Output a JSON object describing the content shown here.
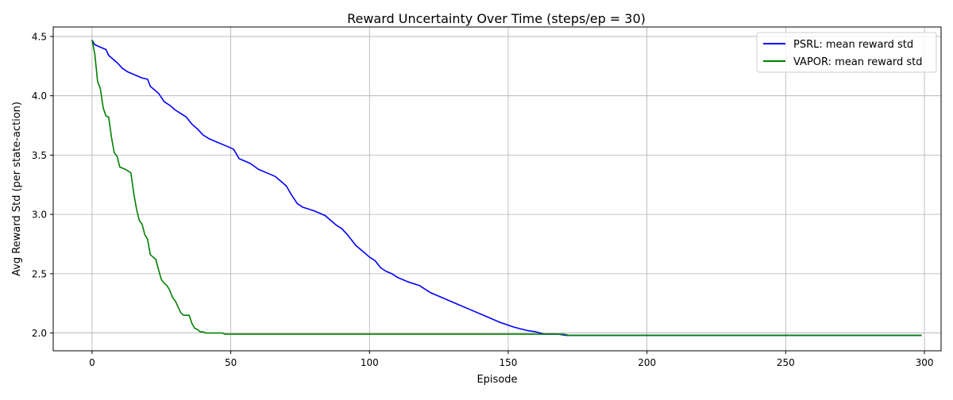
{
  "chart_data": {
    "type": "line",
    "title": "Reward Uncertainty Over Time (steps/ep = 30)",
    "xlabel": "Episode",
    "ylabel": "Avg Reward Std (per state-action)",
    "xlim": [
      -14,
      306
    ],
    "ylim": [
      1.85,
      4.58
    ],
    "xticks": [
      0,
      50,
      100,
      150,
      200,
      250,
      300
    ],
    "yticks": [
      2.0,
      2.5,
      3.0,
      3.5,
      4.0,
      4.5
    ],
    "xtick_labels": [
      "0",
      "50",
      "100",
      "150",
      "200",
      "250",
      "300"
    ],
    "ytick_labels": [
      "2.0",
      "2.5",
      "3.0",
      "3.5",
      "4.0",
      "4.5"
    ],
    "grid": true,
    "legend_position": "top-right",
    "series": [
      {
        "name": "PSRL: mean reward std",
        "color": "#0000ff",
        "x": [
          0,
          1,
          3,
          5,
          6,
          7,
          9,
          11,
          13,
          15,
          18,
          20,
          21,
          22,
          24,
          26,
          28,
          30,
          32,
          34,
          36,
          38,
          40,
          42,
          45,
          48,
          51,
          53,
          57,
          60,
          63,
          66,
          68,
          70,
          72,
          74,
          76,
          80,
          84,
          86,
          88,
          90,
          92,
          95,
          97,
          100,
          102,
          104,
          106,
          108,
          110,
          114,
          118,
          122,
          127,
          132,
          137,
          142,
          147,
          152,
          157,
          160,
          163,
          165,
          168,
          171,
          175,
          200,
          250,
          299
        ],
        "y": [
          4.47,
          4.43,
          4.41,
          4.39,
          4.34,
          4.32,
          4.28,
          4.23,
          4.2,
          4.18,
          4.15,
          4.14,
          4.08,
          4.06,
          4.02,
          3.95,
          3.92,
          3.88,
          3.85,
          3.82,
          3.76,
          3.72,
          3.67,
          3.64,
          3.61,
          3.58,
          3.55,
          3.47,
          3.43,
          3.38,
          3.35,
          3.32,
          3.28,
          3.24,
          3.16,
          3.09,
          3.06,
          3.03,
          2.99,
          2.95,
          2.91,
          2.88,
          2.83,
          2.74,
          2.7,
          2.64,
          2.61,
          2.55,
          2.52,
          2.5,
          2.47,
          2.43,
          2.4,
          2.34,
          2.29,
          2.24,
          2.19,
          2.14,
          2.09,
          2.05,
          2.02,
          2.01,
          1.99,
          1.99,
          1.99,
          1.98,
          1.98,
          1.98,
          1.98,
          1.98
        ]
      },
      {
        "name": "VAPOR: mean reward std",
        "color": "#008000",
        "x": [
          0,
          1,
          2,
          3,
          4,
          5,
          6,
          7,
          8,
          9,
          10,
          12,
          14,
          15,
          16,
          17,
          18,
          19,
          20,
          21,
          23,
          24,
          25,
          26,
          27,
          28,
          29,
          30,
          31,
          32,
          33,
          35,
          36,
          37,
          38,
          39,
          40,
          41,
          45,
          47,
          48,
          60,
          100,
          170,
          172,
          200,
          250,
          299
        ],
        "y": [
          4.47,
          4.35,
          4.12,
          4.06,
          3.9,
          3.83,
          3.82,
          3.65,
          3.52,
          3.49,
          3.4,
          3.38,
          3.35,
          3.18,
          3.05,
          2.95,
          2.92,
          2.83,
          2.79,
          2.66,
          2.62,
          2.53,
          2.45,
          2.42,
          2.4,
          2.36,
          2.3,
          2.27,
          2.22,
          2.17,
          2.15,
          2.15,
          2.08,
          2.04,
          2.03,
          2.01,
          2.01,
          2.0,
          2.0,
          2.0,
          1.99,
          1.99,
          1.99,
          1.99,
          1.98,
          1.98,
          1.98,
          1.98
        ]
      }
    ]
  }
}
